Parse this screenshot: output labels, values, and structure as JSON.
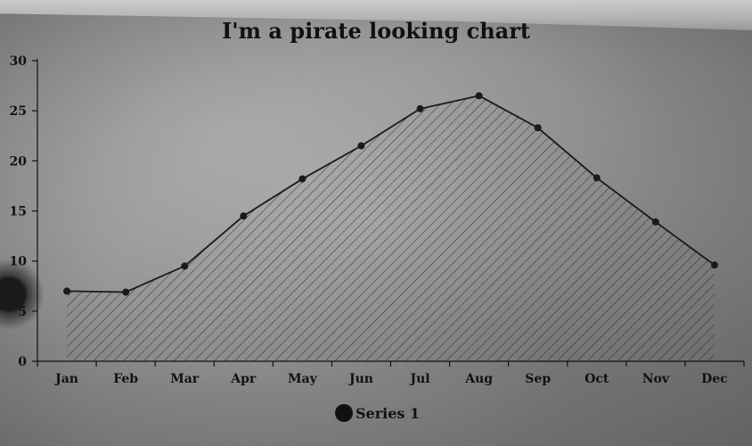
{
  "colors": {
    "ink": "#111111",
    "line": "#1a1a1a",
    "hatch": "#222222"
  },
  "chart_data": {
    "type": "area",
    "title": "I'm a pirate looking chart",
    "xlabel": "",
    "ylabel": "",
    "categories": [
      "Jan",
      "Feb",
      "Mar",
      "Apr",
      "May",
      "Jun",
      "Jul",
      "Aug",
      "Sep",
      "Oct",
      "Nov",
      "Dec"
    ],
    "series": [
      {
        "name": "Series 1",
        "values": [
          7.0,
          6.9,
          9.5,
          14.5,
          18.2,
          21.5,
          25.2,
          26.5,
          23.3,
          18.3,
          13.9,
          9.6
        ]
      }
    ],
    "ylim": [
      0,
      30
    ],
    "yticks": [
      0,
      5,
      10,
      15,
      20,
      25,
      30
    ],
    "grid": false,
    "legend": "bottom-center",
    "fill": "diagonal-hatch"
  }
}
